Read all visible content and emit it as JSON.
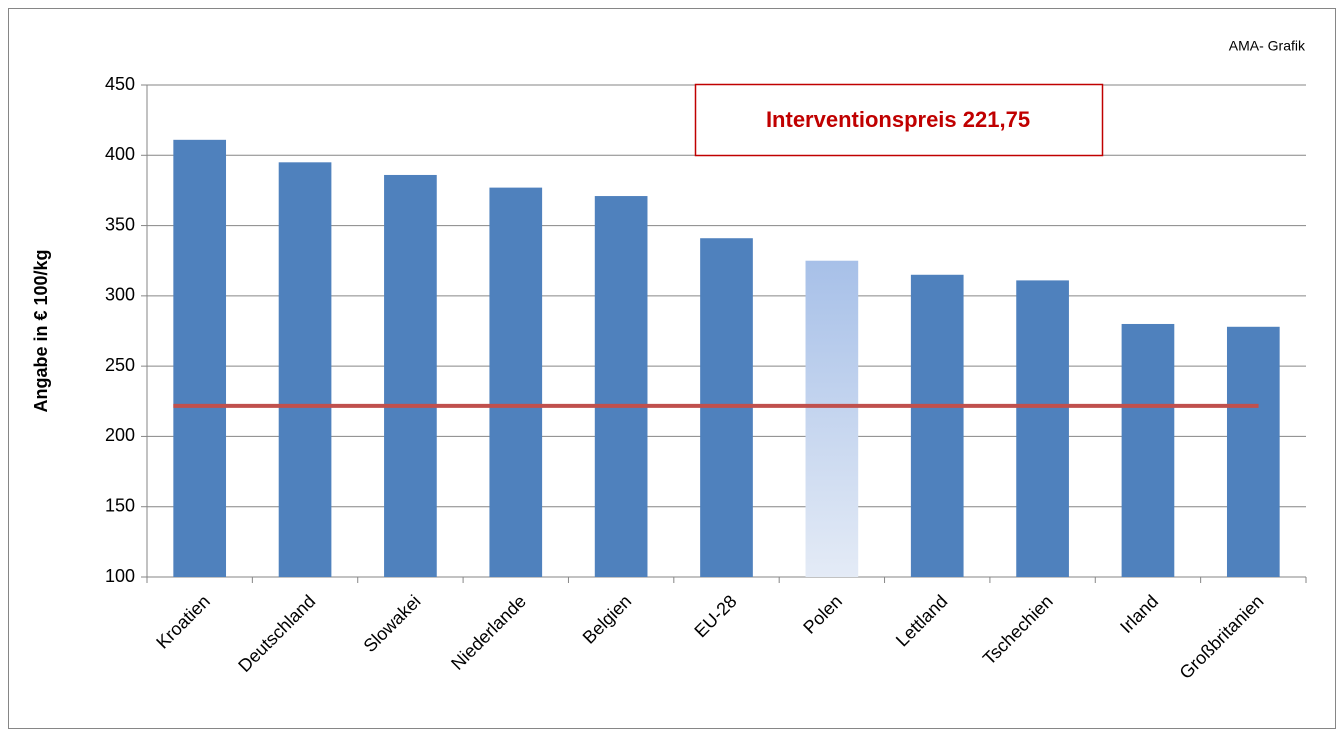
{
  "chart_data": {
    "type": "bar",
    "source_note": "AMA- Grafik",
    "y_label": "Angabe in € 100/kg",
    "categories": [
      "Kroatien",
      "Deutschland",
      "Slowakei",
      "Niederlande",
      "Belgien",
      "EU-28",
      "Polen",
      "Lettland",
      "Tschechien",
      "Irland",
      "Großbritanien"
    ],
    "values": [
      411,
      395,
      386,
      377,
      371,
      341,
      325,
      315,
      311,
      280,
      278
    ],
    "colors": [
      "#4f81bd",
      "#4f81bd",
      "#4f81bd",
      "#4f81bd",
      "#4f81bd",
      "#4f81bd",
      "#a7c0e8",
      "#4f81bd",
      "#4f81bd",
      "#4f81bd",
      "#4f81bd"
    ],
    "ylim": [
      100,
      450
    ],
    "yticks": [
      100,
      150,
      200,
      250,
      300,
      350,
      400,
      450
    ],
    "grid": true,
    "reference_line": {
      "value": 221.75,
      "label": "Interventionspreis 221,75",
      "color": "#c0504d",
      "label_color": "#c00000"
    }
  }
}
